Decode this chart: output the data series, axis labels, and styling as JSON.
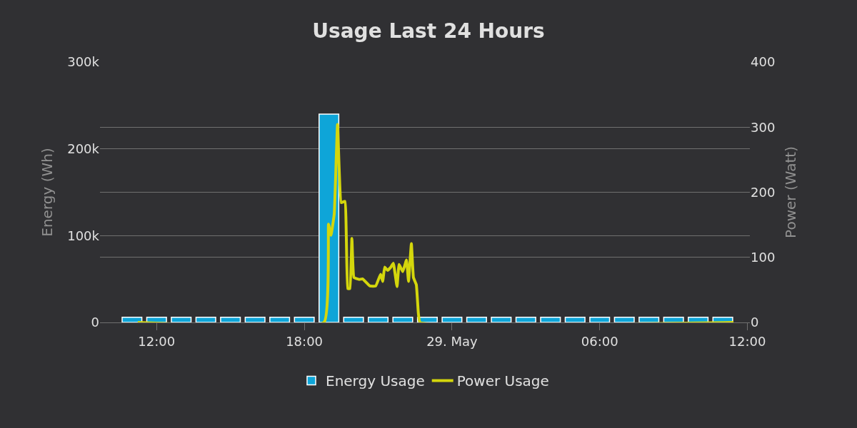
{
  "chart_data": {
    "type": "bar",
    "title": "Usage Last 24 Hours",
    "ylabel": "Energy (Wh)",
    "y2label": "Power (Watt)",
    "xlim": [
      "--05-28T09:42",
      "--05-29T12:06"
    ],
    "xticks": [
      {
        "value": "--05-28T12:00",
        "label": "12:00"
      },
      {
        "value": "--05-28T18:00",
        "label": "18:00"
      },
      {
        "value": "--05-29T00:00",
        "label": "29. May"
      },
      {
        "value": "--05-29T06:00",
        "label": "06:00"
      },
      {
        "value": "--05-29T12:00",
        "label": "12:00"
      }
    ],
    "ylim": [
      0,
      300000
    ],
    "yticks": [
      0,
      {
        "value": 100000,
        "label": "100k"
      },
      {
        "value": 200000,
        "label": "200k"
      },
      {
        "value": 300000,
        "label": "300k"
      }
    ],
    "y2lim": [
      0,
      400
    ],
    "y2ticks": [
      0,
      100,
      200,
      300,
      400
    ],
    "grid": "y",
    "legend": "bottom",
    "series": [
      {
        "name": "Energy Usage",
        "color": "#0ea5d8",
        "x": [
          "--05-28T11:00",
          "--05-28T12:00",
          "--05-28T13:00",
          "--05-28T14:00",
          "--05-28T15:00",
          "--05-28T16:00",
          "--05-28T17:00",
          "--05-28T18:00",
          "--05-28T19:00",
          "--05-28T20:00",
          "--05-28T21:00",
          "--05-28T22:00",
          "--05-28T23:00",
          "--05-29T00:00",
          "--05-29T01:00",
          "--05-29T02:00",
          "--05-29T03:00",
          "--05-29T04:00",
          "--05-29T05:00",
          "--05-29T06:00",
          "--05-29T07:00",
          "--05-29T08:00",
          "--05-29T09:00",
          "--05-29T10:00",
          "--05-29T11:00"
        ],
        "values": [
          6000,
          6000,
          6000,
          6000,
          6000,
          6000,
          6000,
          6000,
          240000,
          6000,
          6000,
          6000,
          6000,
          6000,
          6000,
          6000,
          6000,
          6000,
          6000,
          6000,
          6000,
          6000,
          6000,
          6000,
          6000
        ]
      },
      {
        "name": "Power Usage",
        "type": "line",
        "axis": "y2",
        "color": "#d4d60c",
        "x": [
          "--05-28T11:14",
          "--05-28T18:48",
          "--05-28T18:59",
          "--05-28T19:05",
          "--05-28T19:13",
          "--05-28T19:21",
          "--05-28T19:30",
          "--05-28T19:39",
          "--05-28T19:46",
          "--05-28T19:51",
          "--05-28T19:56",
          "--05-28T20:01",
          "--05-28T20:14",
          "--05-28T20:22",
          "--05-28T20:40",
          "--05-28T20:54",
          "--05-28T21:06",
          "--05-28T21:11",
          "--05-28T21:16",
          "--05-28T21:23",
          "--05-28T21:31",
          "--05-28T21:37",
          "--05-28T21:46",
          "--05-28T21:51",
          "--05-28T22:00",
          "--05-28T22:09",
          "--05-28T22:14",
          "--05-28T22:21",
          "--05-28T22:26",
          "--05-28T22:33",
          "--05-28T22:38",
          "--05-28T22:42",
          "--05-29T11:26"
        ],
        "values": [
          0,
          0,
          151,
          134,
          167,
          304,
          184,
          186,
          52,
          52,
          129,
          69,
          66,
          67,
          56,
          56,
          74,
          63,
          85,
          80,
          85,
          91,
          55,
          89,
          78,
          96,
          63,
          121,
          69,
          58,
          14,
          0,
          0
        ]
      }
    ]
  }
}
